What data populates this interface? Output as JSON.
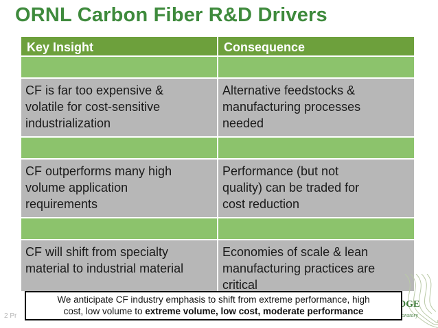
{
  "title": "ORNL Carbon Fiber R&D Drivers",
  "table": {
    "headers": [
      "Key Insight",
      "Consequence"
    ],
    "rows": [
      {
        "insight": [
          "CF is far too expensive &",
          "volatile for cost-sensitive",
          "industrialization"
        ],
        "consequence": [
          "Alternative feedstocks &",
          "manufacturing processes",
          "needed"
        ]
      },
      {
        "insight": [
          "CF outperforms many high",
          "volume application",
          "requirements"
        ],
        "consequence": [
          "Performance (but not",
          "quality) can be traded for",
          "cost reduction"
        ]
      },
      {
        "insight": [
          "CF will shift from specialty",
          "material to industrial material"
        ],
        "consequence": [
          "Economies of scale & lean",
          "manufacturing practices are",
          "critical"
        ]
      }
    ]
  },
  "callout": {
    "line1": "We anticipate CF industry emphasis to shift from extreme performance, high",
    "line2_plain": "cost, low volume to ",
    "line2_bold": "extreme volume, low cost, moderate performance"
  },
  "footer": {
    "page_text": "2 Pr",
    "logo_text": "DGE",
    "logo_sub": "boratory"
  },
  "colors": {
    "title": "#3e8a3c",
    "header_bg": "#6da03c",
    "spacer_bg": "#8cc36c",
    "content_bg": "#b7b7b7"
  }
}
